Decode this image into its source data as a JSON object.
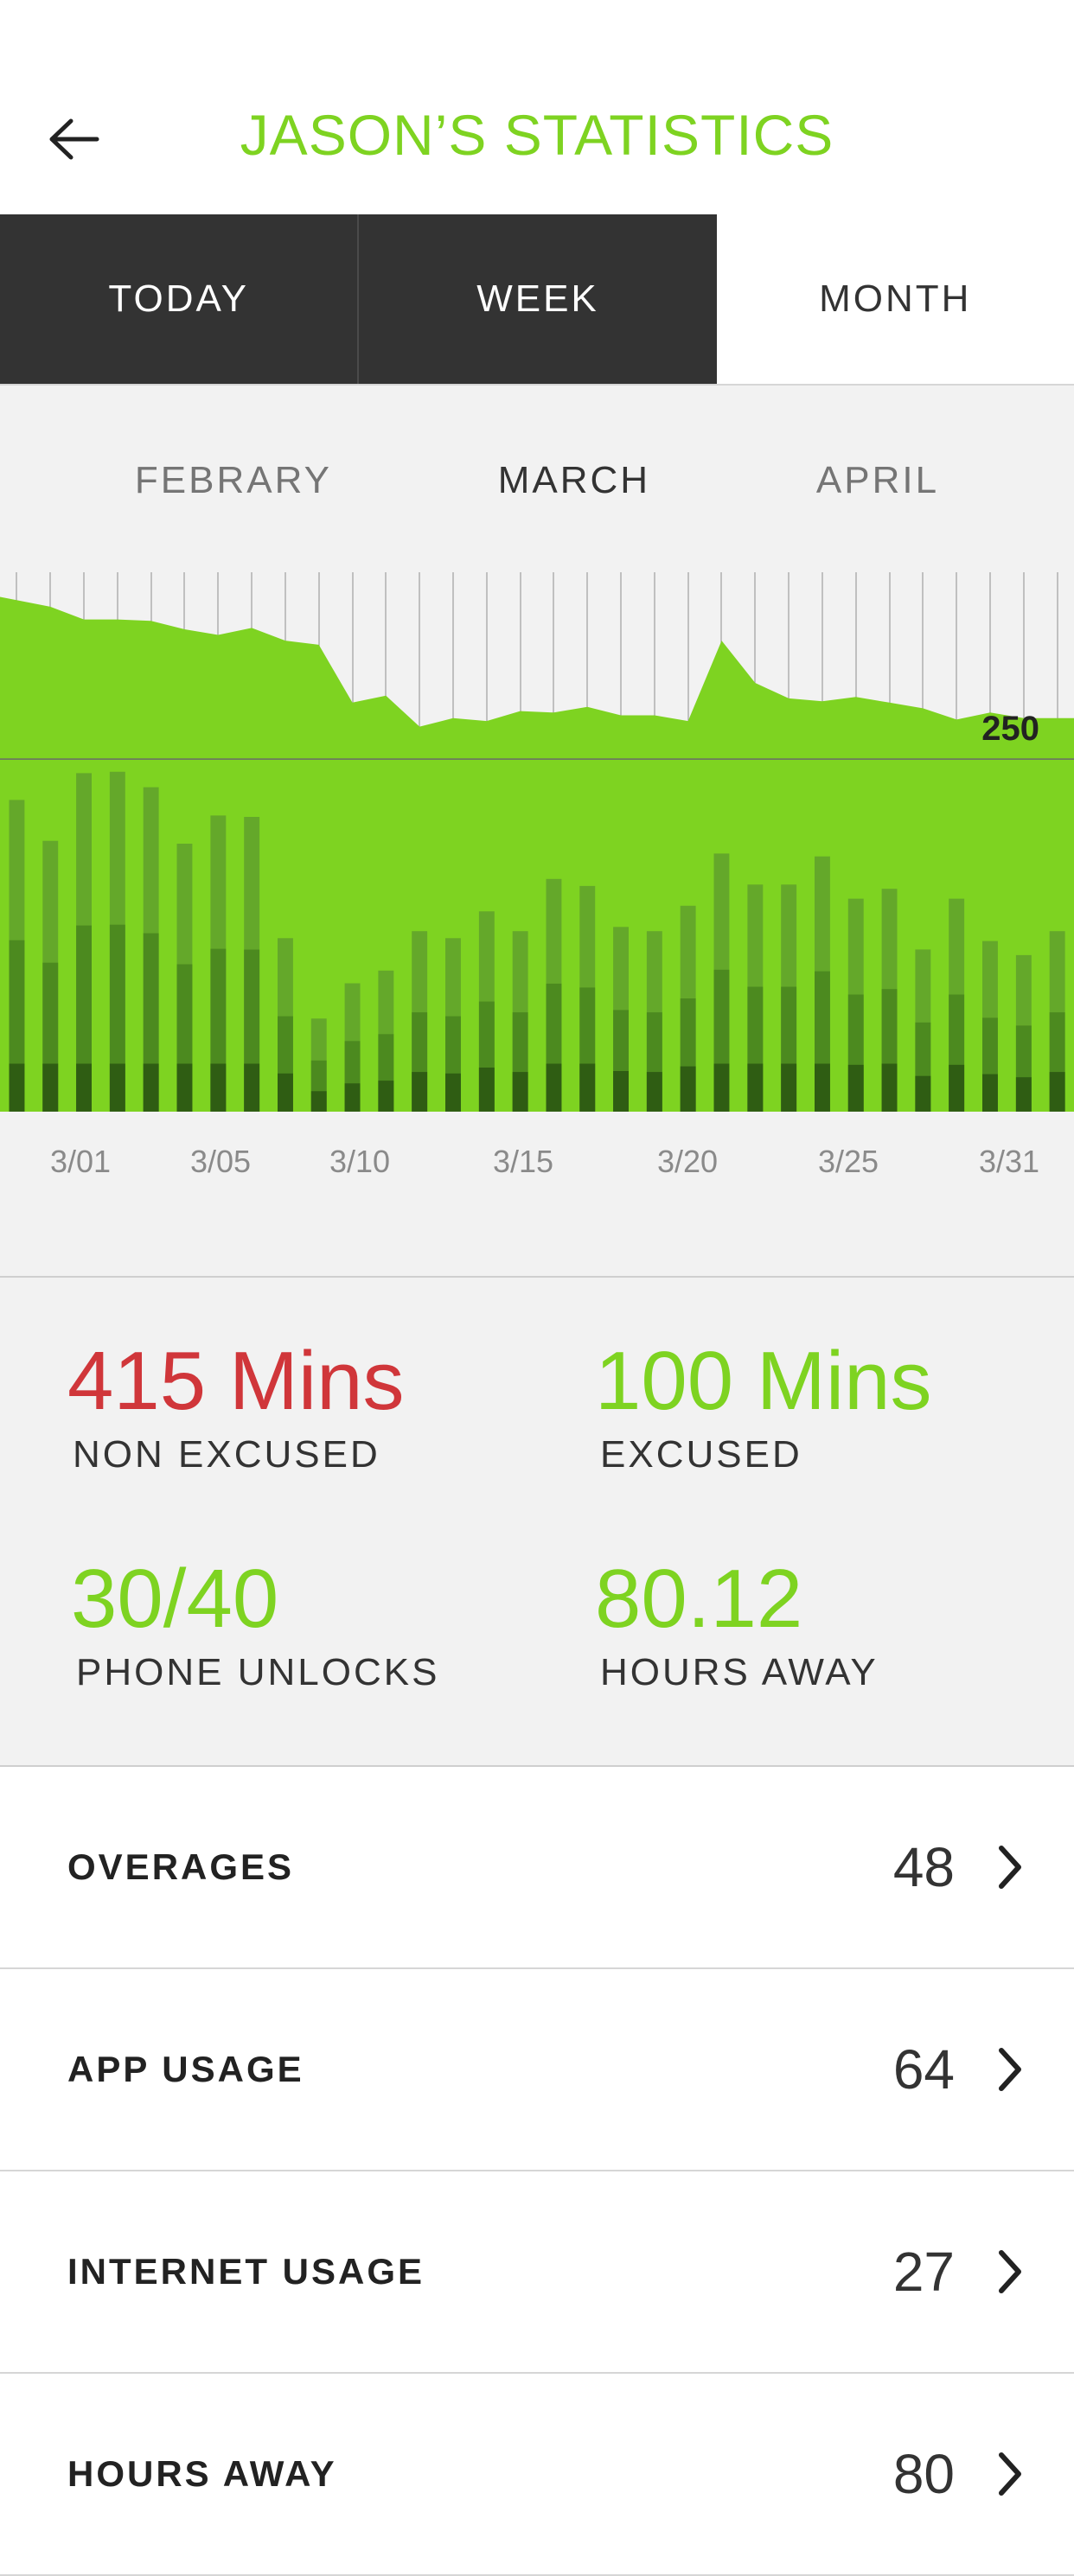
{
  "header": {
    "title": "JASON’S STATISTICS",
    "back_icon": "arrow-left-icon"
  },
  "tabs": [
    {
      "label": "TODAY"
    },
    {
      "label": "WEEK"
    },
    {
      "label": "MONTH"
    }
  ],
  "active_tab": "MONTH",
  "months": [
    {
      "label": "FEBRARY"
    },
    {
      "label": "MARCH"
    },
    {
      "label": "APRIL"
    }
  ],
  "active_month": "MARCH",
  "chart_data": {
    "type": "bar",
    "reference_line": {
      "value": 250,
      "label": "250"
    },
    "x_tick_labels": [
      "3/01",
      "3/05",
      "3/10",
      "3/15",
      "3/20",
      "3/25",
      "3/31"
    ],
    "area_series": [
      365,
      358,
      349,
      349,
      348,
      342,
      338,
      343,
      334,
      331,
      290,
      295,
      273,
      279,
      277,
      284,
      283,
      287,
      281,
      281,
      277,
      334,
      304,
      293,
      291,
      294,
      290,
      286,
      278,
      283,
      279,
      279
    ],
    "bar_totals": [
      221,
      192,
      240,
      241,
      230,
      190,
      210,
      209,
      123,
      66,
      91,
      100,
      128,
      123,
      142,
      128,
      165,
      160,
      131,
      128,
      146,
      183,
      161,
      161,
      181,
      151,
      158,
      115,
      151,
      121,
      111,
      128
    ],
    "ylim": [
      0,
      380
    ],
    "colors": {
      "area": "#7ed321",
      "bar_light": "#64a82a",
      "bar_mid": "#4c8a1f",
      "bar_dark": "#2f5d13"
    }
  },
  "stats": {
    "non_excused": {
      "value": "415 Mins",
      "label": "NON EXCUSED"
    },
    "excused": {
      "value": "100 Mins",
      "label": "EXCUSED"
    },
    "unlocks": {
      "value": "30/40",
      "label": "PHONE UNLOCKS"
    },
    "hours_away": {
      "value": "80.12",
      "label": "HOURS AWAY"
    }
  },
  "rows": [
    {
      "label": "OVERAGES",
      "value": "48"
    },
    {
      "label": "APP USAGE",
      "value": "64"
    },
    {
      "label": "INTERNET USAGE",
      "value": "27"
    },
    {
      "label": "HOURS AWAY",
      "value": "80"
    }
  ],
  "colors": {
    "accent": "#7ed321",
    "alert": "#d0363a",
    "tab_dark": "#333333"
  }
}
